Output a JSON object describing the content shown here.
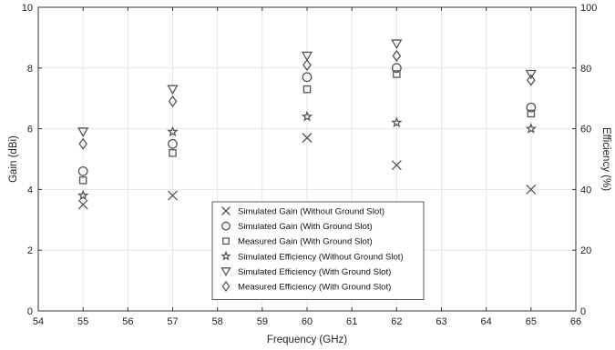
{
  "chart_data": {
    "type": "scatter",
    "xlabel": "Frequency (GHz)",
    "ylabel": "Gain (dBi)",
    "y2label": "Efficiency (%)",
    "xlim": [
      54,
      66
    ],
    "ylim": [
      0,
      10
    ],
    "y2lim": [
      0,
      100
    ],
    "xticks": [
      "54",
      "55",
      "56",
      "57",
      "58",
      "59",
      "60",
      "61",
      "62",
      "63",
      "64",
      "65",
      "66"
    ],
    "yticks": [
      "0",
      "2",
      "4",
      "6",
      "8",
      "10"
    ],
    "y2ticks": [
      "0",
      "20",
      "40",
      "60",
      "80",
      "100"
    ],
    "grid": true,
    "legend_position": "bottom-center",
    "colors": {
      "marker": "#555555",
      "grid": "#e6e6e6",
      "axis": "#333333"
    },
    "series": [
      {
        "name": "Simulated Gain (Without Ground Slot)",
        "marker": "x",
        "axis": "left",
        "x": [
          55,
          57,
          60,
          62,
          65
        ],
        "y": [
          3.5,
          3.8,
          5.7,
          4.8,
          4.0
        ]
      },
      {
        "name": "Simulated Gain (With Ground Slot)",
        "marker": "circle",
        "axis": "left",
        "x": [
          55,
          57,
          60,
          62,
          65
        ],
        "y": [
          4.6,
          5.5,
          7.7,
          8.0,
          6.7
        ]
      },
      {
        "name": "Measured Gain (With Ground Slot)",
        "marker": "square",
        "axis": "left",
        "x": [
          55,
          57,
          60,
          62,
          65
        ],
        "y": [
          4.3,
          5.2,
          7.3,
          7.8,
          6.5
        ]
      },
      {
        "name": "Simulated Efficiency (Without Ground Slot)",
        "marker": "star",
        "axis": "right",
        "x": [
          55,
          57,
          60,
          62,
          65
        ],
        "y": [
          38,
          59,
          64,
          62,
          60
        ]
      },
      {
        "name": "Simulated Efficiency (With Ground Slot)",
        "marker": "triangle-down",
        "axis": "right",
        "x": [
          55,
          57,
          60,
          62,
          65
        ],
        "y": [
          59,
          73,
          84,
          88,
          78
        ]
      },
      {
        "name": "Measured Efficiency (With Ground Slot)",
        "marker": "diamond",
        "axis": "right",
        "x": [
          55,
          57,
          60,
          62,
          65
        ],
        "y": [
          55,
          69,
          81,
          84,
          76
        ]
      }
    ]
  }
}
